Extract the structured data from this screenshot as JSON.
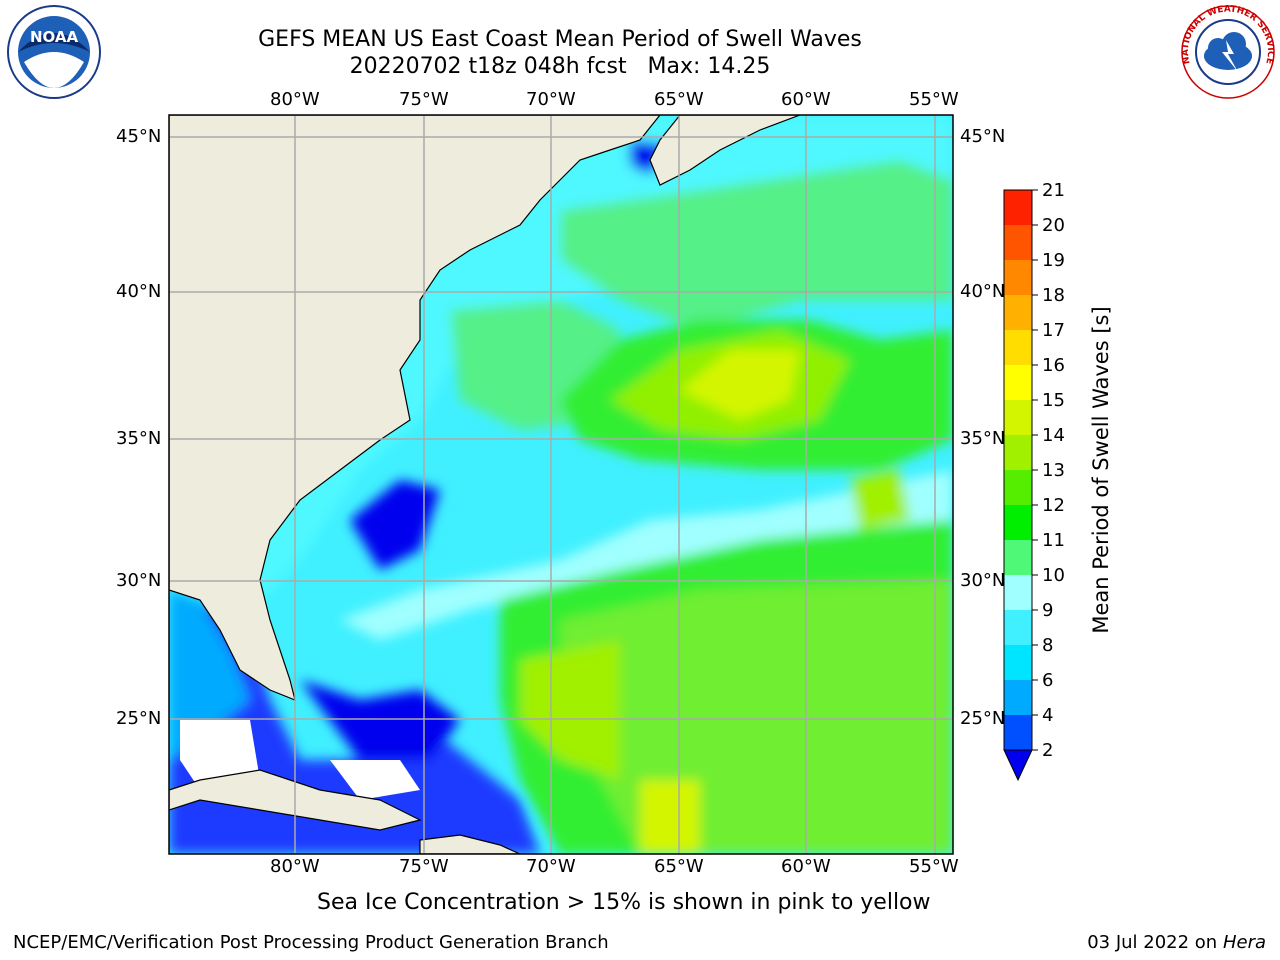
{
  "title": {
    "line1": "GEFS MEAN US East Coast Mean Period of Swell Waves",
    "line2": "20220702 t18z 048h fcst   Max: 14.25"
  },
  "logos": {
    "left": {
      "icon": "noaa-logo-icon",
      "text": "NOAA"
    },
    "right": {
      "icon": "nws-logo-icon",
      "text": "NATIONAL WEATHER SERVICE"
    }
  },
  "map": {
    "lon_labels": [
      "80°W",
      "75°W",
      "70°W",
      "65°W",
      "60°W",
      "55°W"
    ],
    "lat_labels": [
      "45°N",
      "40°N",
      "35°N",
      "30°N",
      "25°N"
    ]
  },
  "colorbar": {
    "label": "Mean Period of Swell Waves [s]",
    "ticks": [
      "2",
      "4",
      "6",
      "8",
      "9",
      "10",
      "11",
      "12",
      "13",
      "14",
      "15",
      "16",
      "17",
      "18",
      "19",
      "20",
      "21"
    ],
    "colors": [
      "#0050ff",
      "#00aaff",
      "#00e5ff",
      "#40f0ff",
      "#a0ffff",
      "#50f878",
      "#00ee00",
      "#55ee00",
      "#a0f000",
      "#d4f500",
      "#ffff00",
      "#ffdd00",
      "#ffb000",
      "#ff8800",
      "#ff5500",
      "#ff2200"
    ],
    "under_color": "#0000ee"
  },
  "note": "Sea Ice Concentration > 15% is shown in pink to yellow",
  "footer": {
    "left": "NCEP/EMC/Verification Post Processing Product Generation Branch",
    "right_date": "03 Jul 2022 on ",
    "right_host": "Hera"
  }
}
